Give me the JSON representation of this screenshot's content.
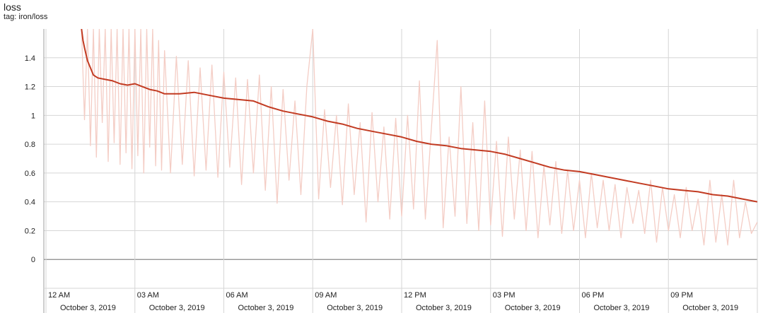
{
  "card": {
    "title": "loss",
    "tag": "tag: iron/loss"
  },
  "colors": {
    "smoothed": "#c23b22",
    "raw": "#f4cdc5",
    "grid": "#d6d6d6",
    "zero_line": "#888888",
    "axis": "#9e9e9e"
  },
  "chart_data": {
    "type": "line",
    "title": "loss",
    "xlabel": "",
    "ylabel": "",
    "ylim": [
      -0.2,
      1.6
    ],
    "xlim": [
      "2019-10-03 00:00",
      "2019-10-04 00:00"
    ],
    "y_ticks": [
      "0",
      "0.2",
      "0.4",
      "0.6",
      "0.8",
      "1",
      "1.2",
      "1.4"
    ],
    "x_ticks": [
      {
        "time": "12 AM",
        "date": "October 3, 2019",
        "hour": 0
      },
      {
        "time": "03 AM",
        "date": "October 3, 2019",
        "hour": 3
      },
      {
        "time": "06 AM",
        "date": "October 3, 2019",
        "hour": 6
      },
      {
        "time": "09 AM",
        "date": "October 3, 2019",
        "hour": 9
      },
      {
        "time": "12 PM",
        "date": "October 3, 2019",
        "hour": 12
      },
      {
        "time": "03 PM",
        "date": "October 3, 2019",
        "hour": 15
      },
      {
        "time": "06 PM",
        "date": "October 3, 2019",
        "hour": 18
      },
      {
        "time": "09 PM",
        "date": "October 3, 2019",
        "hour": 21
      }
    ],
    "grid": true,
    "series": [
      {
        "role": "smoothed",
        "x_hours": [
          1.2,
          1.25,
          1.3,
          1.4,
          1.5,
          1.6,
          1.75,
          2.0,
          2.25,
          2.5,
          2.75,
          3.0,
          3.25,
          3.5,
          3.75,
          4.0,
          4.5,
          5.0,
          5.5,
          6.0,
          6.5,
          7.0,
          7.5,
          8.0,
          8.5,
          9.0,
          9.5,
          10.0,
          10.5,
          11.0,
          11.5,
          12.0,
          12.5,
          13.0,
          13.5,
          14.0,
          14.5,
          15.0,
          15.5,
          16.0,
          16.5,
          17.0,
          17.5,
          18.0,
          18.5,
          19.0,
          19.5,
          20.0,
          20.5,
          21.0,
          21.5,
          22.0,
          22.5,
          23.0,
          23.5,
          24.0
        ],
        "values": [
          1.6,
          1.52,
          1.47,
          1.38,
          1.33,
          1.28,
          1.26,
          1.25,
          1.24,
          1.22,
          1.21,
          1.22,
          1.2,
          1.18,
          1.17,
          1.15,
          1.15,
          1.16,
          1.14,
          1.12,
          1.11,
          1.1,
          1.06,
          1.03,
          1.01,
          0.99,
          0.96,
          0.94,
          0.91,
          0.89,
          0.87,
          0.85,
          0.82,
          0.8,
          0.79,
          0.77,
          0.76,
          0.75,
          0.73,
          0.7,
          0.67,
          0.64,
          0.62,
          0.61,
          0.59,
          0.57,
          0.55,
          0.53,
          0.51,
          0.49,
          0.48,
          0.47,
          0.45,
          0.44,
          0.42,
          0.4
        ]
      },
      {
        "role": "raw",
        "x_hours": [
          1.2,
          1.3,
          1.4,
          1.5,
          1.6,
          1.7,
          1.8,
          1.9,
          2.0,
          2.1,
          2.2,
          2.3,
          2.4,
          2.5,
          2.6,
          2.7,
          2.8,
          2.9,
          3.0,
          3.1,
          3.2,
          3.3,
          3.4,
          3.5,
          3.6,
          3.7,
          3.8,
          3.9,
          4.0,
          4.2,
          4.4,
          4.6,
          4.8,
          5.0,
          5.2,
          5.4,
          5.6,
          5.8,
          6.0,
          6.2,
          6.4,
          6.6,
          6.8,
          7.0,
          7.2,
          7.4,
          7.6,
          7.8,
          8.0,
          8.2,
          8.4,
          8.6,
          8.8,
          9.0,
          9.2,
          9.4,
          9.6,
          9.8,
          10.0,
          10.2,
          10.4,
          10.6,
          10.8,
          11.0,
          11.2,
          11.4,
          11.6,
          11.8,
          12.0,
          12.2,
          12.4,
          12.6,
          12.8,
          13.0,
          13.2,
          13.4,
          13.6,
          13.8,
          14.0,
          14.2,
          14.4,
          14.6,
          14.8,
          15.0,
          15.2,
          15.4,
          15.6,
          15.8,
          16.0,
          16.2,
          16.4,
          16.6,
          16.8,
          17.0,
          17.2,
          17.4,
          17.6,
          17.8,
          18.0,
          18.2,
          18.4,
          18.6,
          18.8,
          19.0,
          19.2,
          19.4,
          19.6,
          19.8,
          20.0,
          20.2,
          20.4,
          20.6,
          20.8,
          21.0,
          21.2,
          21.4,
          21.6,
          21.8,
          22.0,
          22.2,
          22.4,
          22.6,
          22.8,
          23.0,
          23.2,
          23.4,
          23.6,
          23.8,
          24.0
        ],
        "values": [
          1.6,
          0.97,
          1.6,
          0.79,
          1.6,
          0.71,
          1.6,
          0.95,
          1.6,
          0.68,
          1.6,
          0.81,
          1.6,
          0.66,
          1.6,
          0.74,
          1.6,
          0.63,
          1.6,
          0.72,
          1.6,
          0.6,
          1.6,
          0.78,
          1.6,
          0.65,
          1.52,
          0.62,
          1.45,
          0.6,
          1.41,
          0.66,
          1.38,
          0.58,
          1.33,
          0.62,
          1.35,
          0.57,
          1.3,
          0.64,
          1.26,
          0.52,
          1.25,
          0.6,
          1.28,
          0.48,
          1.2,
          0.39,
          1.18,
          0.55,
          1.1,
          0.45,
          1.2,
          1.6,
          0.42,
          1.04,
          0.5,
          1.0,
          0.38,
          1.08,
          0.45,
          0.95,
          0.26,
          1.02,
          0.4,
          0.92,
          0.28,
          0.98,
          0.3,
          1.0,
          0.35,
          1.24,
          0.28,
          0.9,
          1.52,
          0.22,
          0.85,
          0.3,
          1.2,
          0.25,
          0.95,
          0.2,
          1.1,
          0.24,
          0.82,
          0.16,
          0.85,
          0.28,
          0.76,
          0.2,
          0.75,
          0.15,
          0.65,
          0.24,
          0.68,
          0.18,
          0.62,
          0.2,
          0.55,
          0.15,
          0.6,
          0.22,
          0.55,
          0.2,
          0.52,
          0.15,
          0.5,
          0.25,
          0.48,
          0.18,
          0.55,
          0.12,
          0.5,
          0.2,
          0.45,
          0.15,
          0.5,
          0.2,
          0.42,
          0.1,
          0.55,
          0.12,
          0.45,
          0.1,
          0.55,
          0.15,
          0.4,
          0.18,
          0.26
        ]
      }
    ]
  }
}
